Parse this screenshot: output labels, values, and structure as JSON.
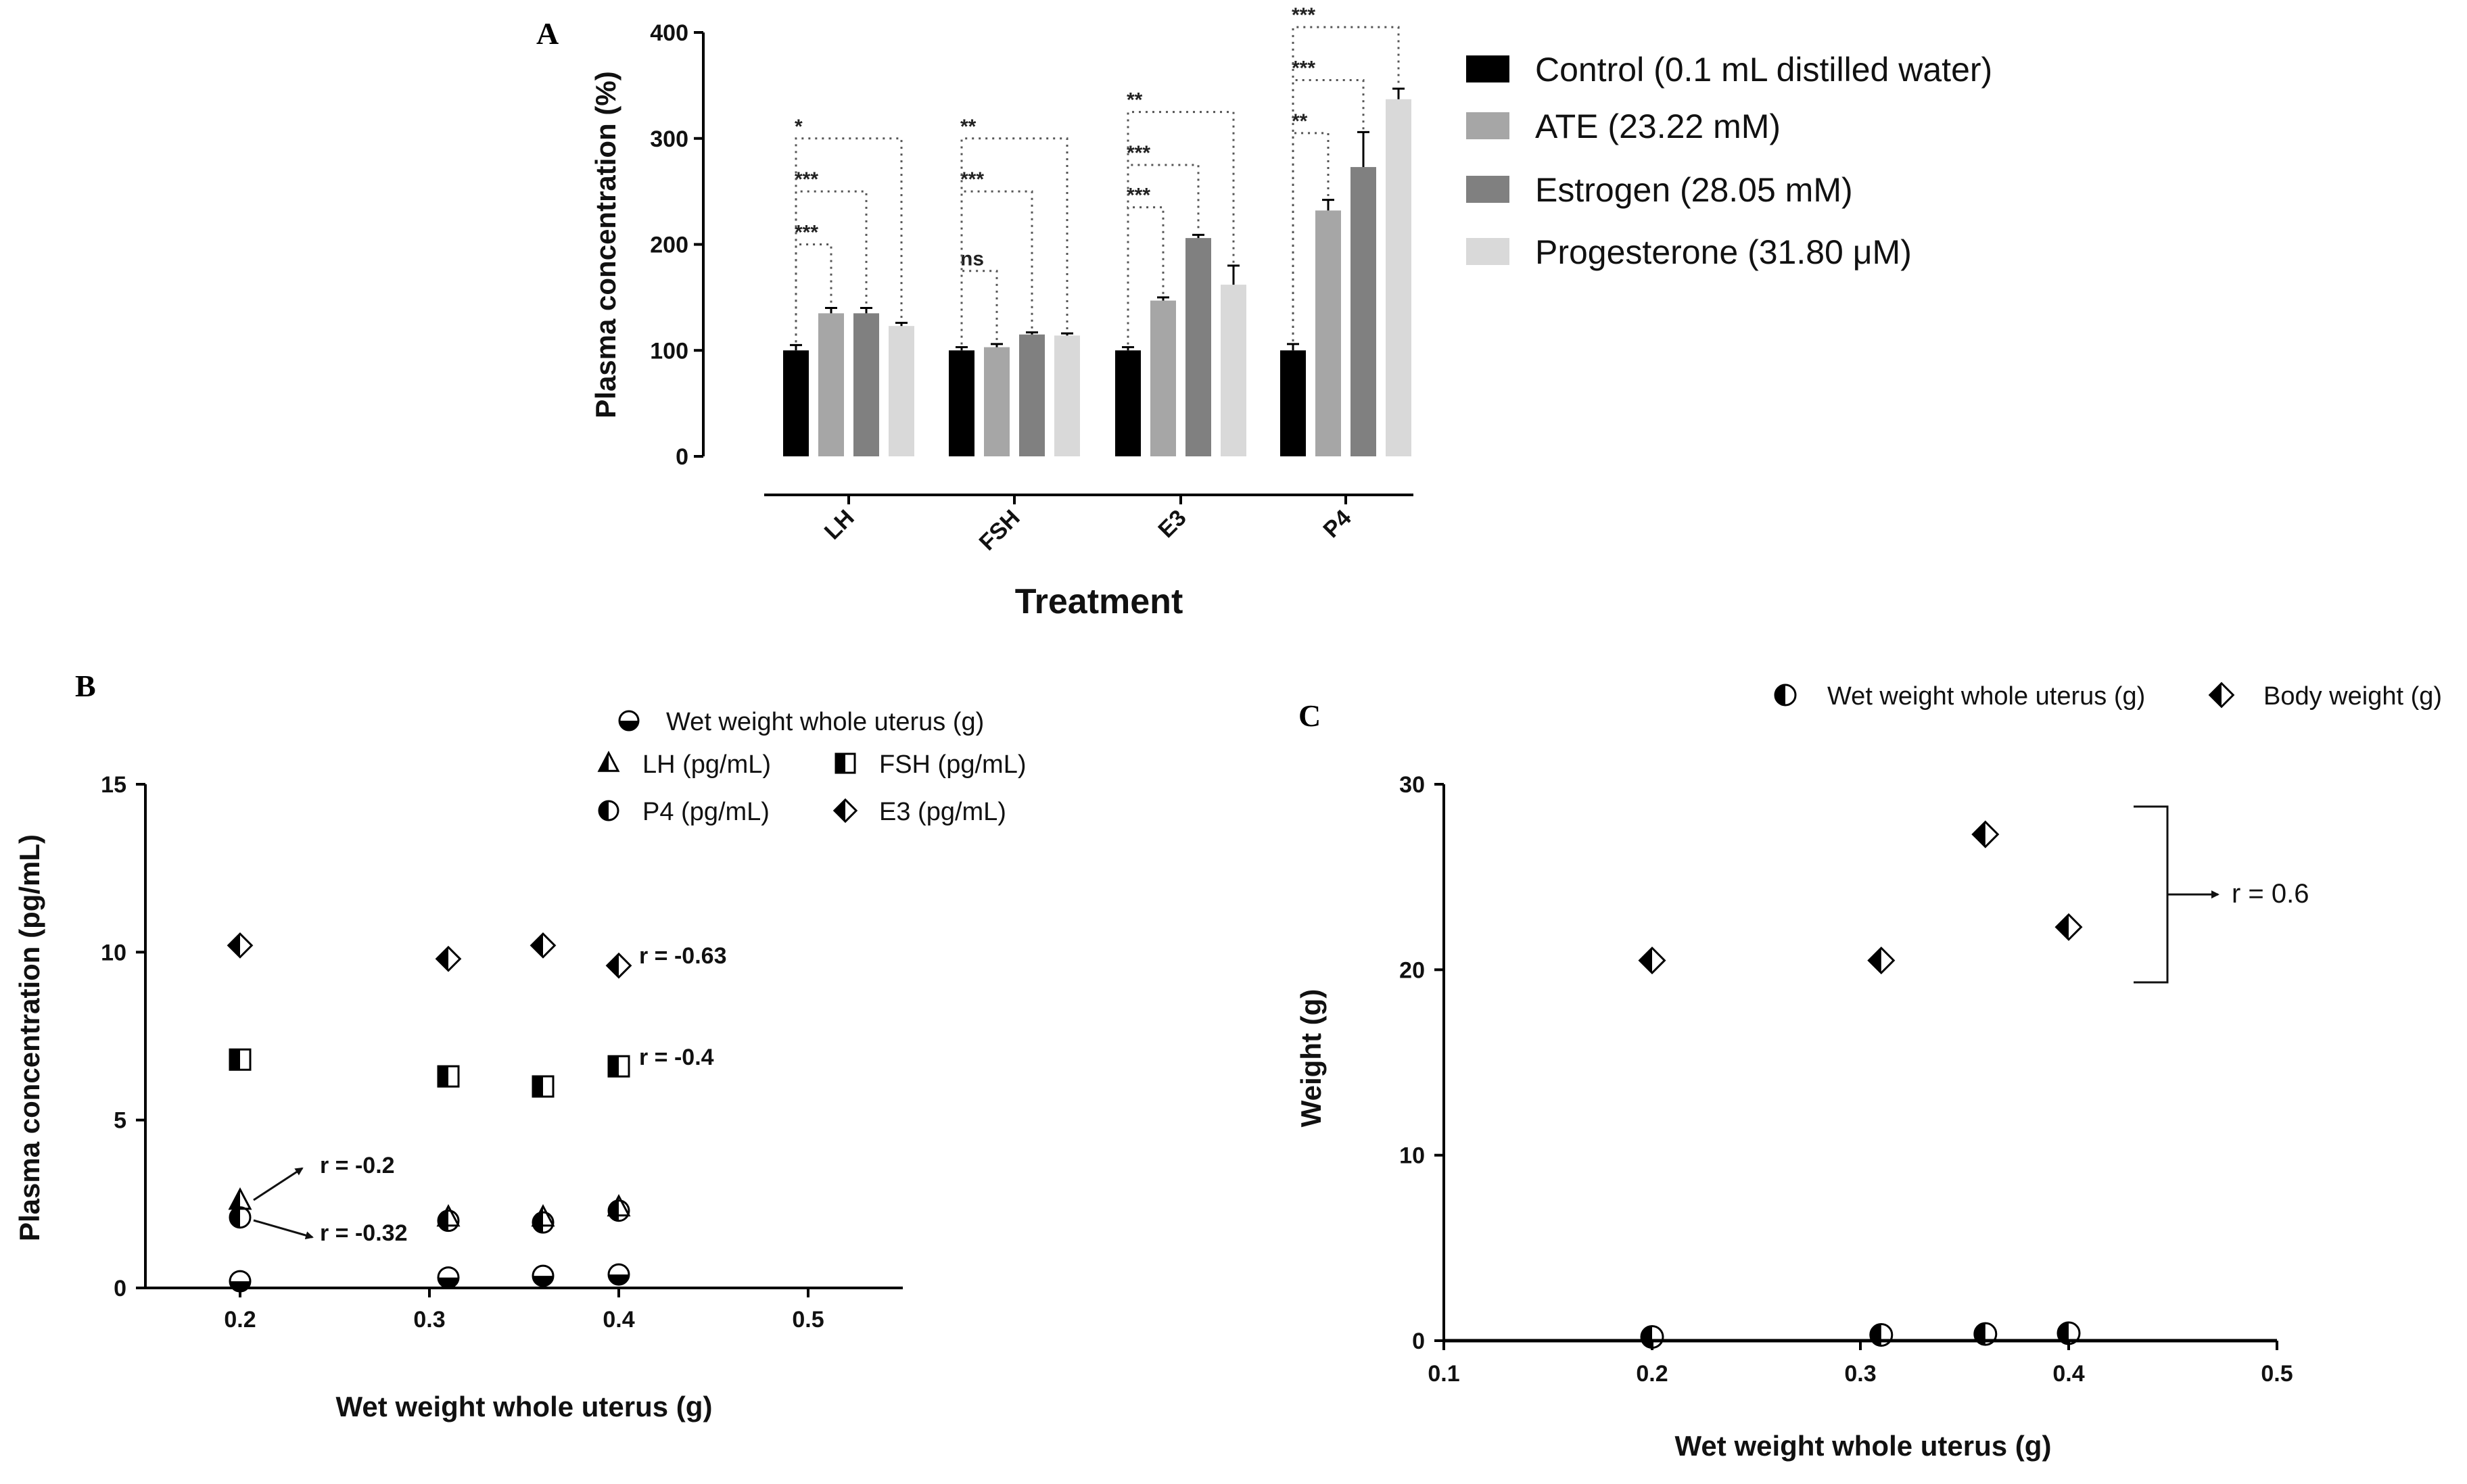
{
  "panels": {
    "a": "A",
    "b": "B",
    "c": "C"
  },
  "chart_data": [
    {
      "type": "bar",
      "panel": "A",
      "xlabel": "Treatment",
      "ylabel": "Plasma concentration (%)",
      "ylim": [
        0,
        400
      ],
      "yticks": [
        0,
        100,
        200,
        300,
        400
      ],
      "categories": [
        "LH",
        "FSH",
        "E3",
        "P4"
      ],
      "series": [
        {
          "name": "Control (0.1 mL distilled water)",
          "color": "#000000",
          "values": [
            100,
            100,
            100,
            100
          ],
          "errors": [
            5,
            3,
            3,
            6
          ]
        },
        {
          "name": "ATE (23.22 mM)",
          "color": "#a6a6a6",
          "values": [
            135,
            103,
            147,
            232
          ],
          "errors": [
            5,
            3,
            3,
            10
          ]
        },
        {
          "name": "Estrogen (28.05 mM)",
          "color": "#808080",
          "values": [
            135,
            115,
            206,
            273
          ],
          "errors": [
            5,
            2,
            3,
            33
          ]
        },
        {
          "name": "Progesterone (31.80 μM)",
          "color": "#d9d9d9",
          "values": [
            123,
            114,
            162,
            337
          ],
          "errors": [
            3,
            2,
            18,
            10
          ]
        }
      ],
      "significance": [
        [
          "***",
          "***",
          "*"
        ],
        [
          "ns",
          "***",
          "**"
        ],
        [
          "***",
          "***",
          "**"
        ],
        [
          "**",
          "***",
          "***"
        ]
      ],
      "legend_position": "right"
    },
    {
      "type": "scatter",
      "panel": "B",
      "xlabel": "Wet weight whole uterus (g)",
      "ylabel": "Plasma concentration (pg/mL)",
      "xlim": [
        0.15,
        0.55
      ],
      "ylim": [
        0,
        15
      ],
      "xticks": [
        "0.2",
        "0.3",
        "0.4",
        "0.5"
      ],
      "yticks": [
        "0",
        "5",
        "10",
        "15"
      ],
      "series": [
        {
          "name": "Wet weight whole uterus (g)",
          "x": [
            0.2,
            0.31,
            0.36,
            0.4
          ],
          "y": [
            0.2,
            0.31,
            0.36,
            0.4
          ]
        },
        {
          "name": "LH (pg/mL)",
          "x": [
            0.2,
            0.31,
            0.36,
            0.4
          ],
          "y": [
            2.6,
            2.1,
            2.1,
            2.4
          ]
        },
        {
          "name": "FSH (pg/mL)",
          "x": [
            0.2,
            0.31,
            0.36,
            0.4
          ],
          "y": [
            6.8,
            6.3,
            6.0,
            6.6
          ]
        },
        {
          "name": "P4 (pg/mL)",
          "x": [
            0.2,
            0.31,
            0.36,
            0.4
          ],
          "y": [
            2.1,
            2.0,
            1.95,
            2.3
          ]
        },
        {
          "name": "E3 (pg/mL)",
          "x": [
            0.2,
            0.31,
            0.36,
            0.4
          ],
          "y": [
            10.2,
            9.8,
            10.2,
            9.6
          ]
        }
      ],
      "annotations": {
        "e3": "r = -0.63",
        "fsh": "r = -0.4",
        "lh": "r = -0.2",
        "p4": "r = -0.32"
      },
      "legend_position": "top"
    },
    {
      "type": "scatter",
      "panel": "C",
      "xlabel": "Wet weight whole uterus (g)",
      "ylabel": "Weight (g)",
      "xlim": [
        0.1,
        0.5
      ],
      "ylim": [
        0,
        30
      ],
      "xticks": [
        "0.1",
        "0.2",
        "0.3",
        "0.4",
        "0.5"
      ],
      "yticks": [
        "0",
        "10",
        "20",
        "30"
      ],
      "series": [
        {
          "name": "Wet weight whole uterus (g)",
          "x": [
            0.2,
            0.31,
            0.36,
            0.4
          ],
          "y": [
            0.2,
            0.31,
            0.36,
            0.4
          ]
        },
        {
          "name": "Body weight (g)",
          "x": [
            0.2,
            0.31,
            0.36,
            0.4
          ],
          "y": [
            20.5,
            20.5,
            27.3,
            22.3
          ]
        }
      ],
      "annotations": {
        "r": "r = 0.6"
      },
      "legend_position": "top"
    }
  ]
}
